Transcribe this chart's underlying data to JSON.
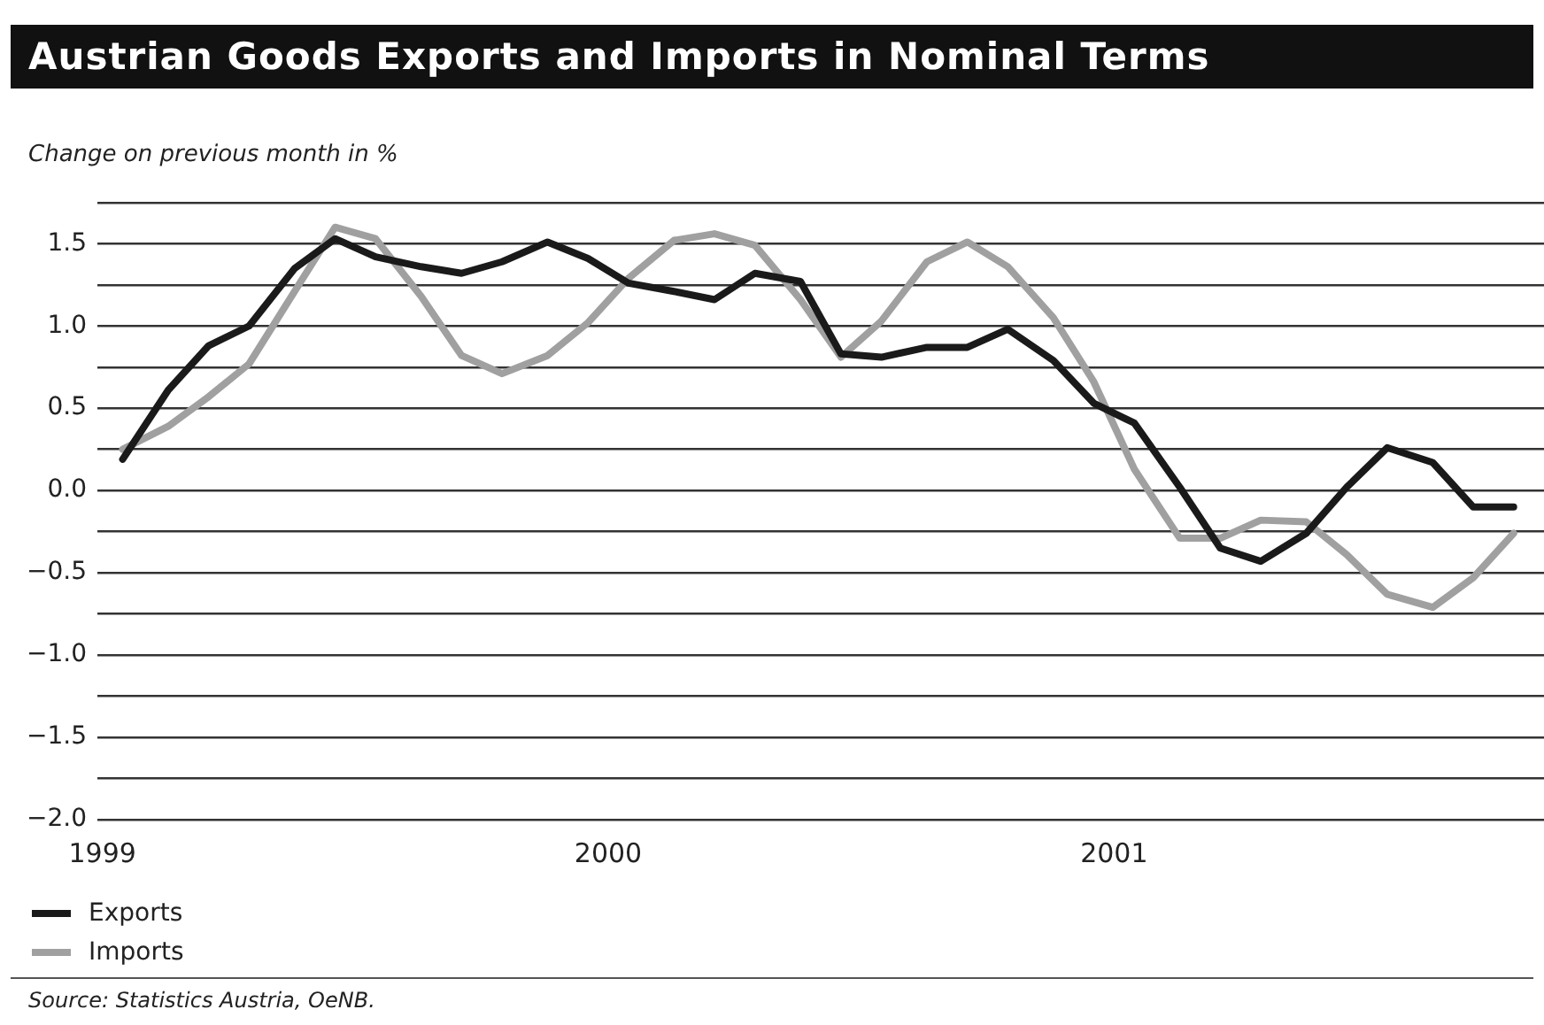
{
  "chart_data": {
    "type": "line",
    "title": "Austrian Goods Exports and Imports in Nominal Terms",
    "ylabel": "Change on previous month in %",
    "x": [
      1999.04,
      1999.13,
      1999.21,
      1999.29,
      1999.38,
      1999.46,
      1999.54,
      1999.63,
      1999.71,
      1999.79,
      1999.88,
      1999.96,
      2000.04,
      2000.13,
      2000.21,
      2000.29,
      2000.38,
      2000.46,
      2000.54,
      2000.63,
      2000.71,
      2000.79,
      2000.88,
      2000.96,
      2001.04,
      2001.13,
      2001.21,
      2001.29,
      2001.38,
      2001.46,
      2001.54,
      2001.63,
      2001.71,
      2001.79
    ],
    "series": [
      {
        "name": "Exports",
        "color": "#1a1a1a",
        "values": [
          0.19,
          0.61,
          0.88,
          1.0,
          1.35,
          1.53,
          1.42,
          1.36,
          1.32,
          1.39,
          1.51,
          1.41,
          1.26,
          1.21,
          1.16,
          1.32,
          1.27,
          0.83,
          0.81,
          0.87,
          0.87,
          0.98,
          0.79,
          0.53,
          0.41,
          0.02,
          -0.35,
          -0.43,
          -0.26,
          0.02,
          0.26,
          0.17,
          -0.1,
          -0.1
        ]
      },
      {
        "name": "Imports",
        "color": "#a0a0a0",
        "values": [
          0.25,
          0.39,
          0.57,
          0.77,
          1.21,
          1.6,
          1.53,
          1.18,
          0.82,
          0.71,
          0.82,
          1.02,
          1.29,
          1.52,
          1.56,
          1.49,
          1.16,
          0.81,
          1.03,
          1.39,
          1.51,
          1.36,
          1.05,
          0.66,
          0.13,
          -0.29,
          -0.29,
          -0.18,
          -0.19,
          -0.39,
          -0.63,
          -0.71,
          -0.53,
          -0.26
        ]
      }
    ],
    "xlim": [
      1998.99,
      2001.85
    ],
    "xticks": [
      1999,
      2000,
      2001
    ],
    "ylim": [
      -2.0,
      1.75
    ],
    "yticks": [
      {
        "value": -2.0,
        "label": "−2.0"
      },
      {
        "value": -1.75,
        "label": null
      },
      {
        "value": -1.5,
        "label": "−1.5"
      },
      {
        "value": -1.25,
        "label": null
      },
      {
        "value": -1.0,
        "label": "−1.0"
      },
      {
        "value": -0.75,
        "label": null
      },
      {
        "value": -0.5,
        "label": "−0.5"
      },
      {
        "value": -0.25,
        "label": null
      },
      {
        "value": 0.0,
        "label": "0.0"
      },
      {
        "value": 0.25,
        "label": null
      },
      {
        "value": 0.5,
        "label": "0.5"
      },
      {
        "value": 0.75,
        "label": null
      },
      {
        "value": 1.0,
        "label": "1.0"
      },
      {
        "value": 1.25,
        "label": null
      },
      {
        "value": 1.5,
        "label": "1.5"
      },
      {
        "value": 1.75,
        "label": null
      }
    ],
    "grid": "y",
    "legend": "bottom left",
    "marker": "none",
    "line_style": "solid",
    "annotations": [
      "Source: Statistics Austria, OeNB."
    ]
  }
}
